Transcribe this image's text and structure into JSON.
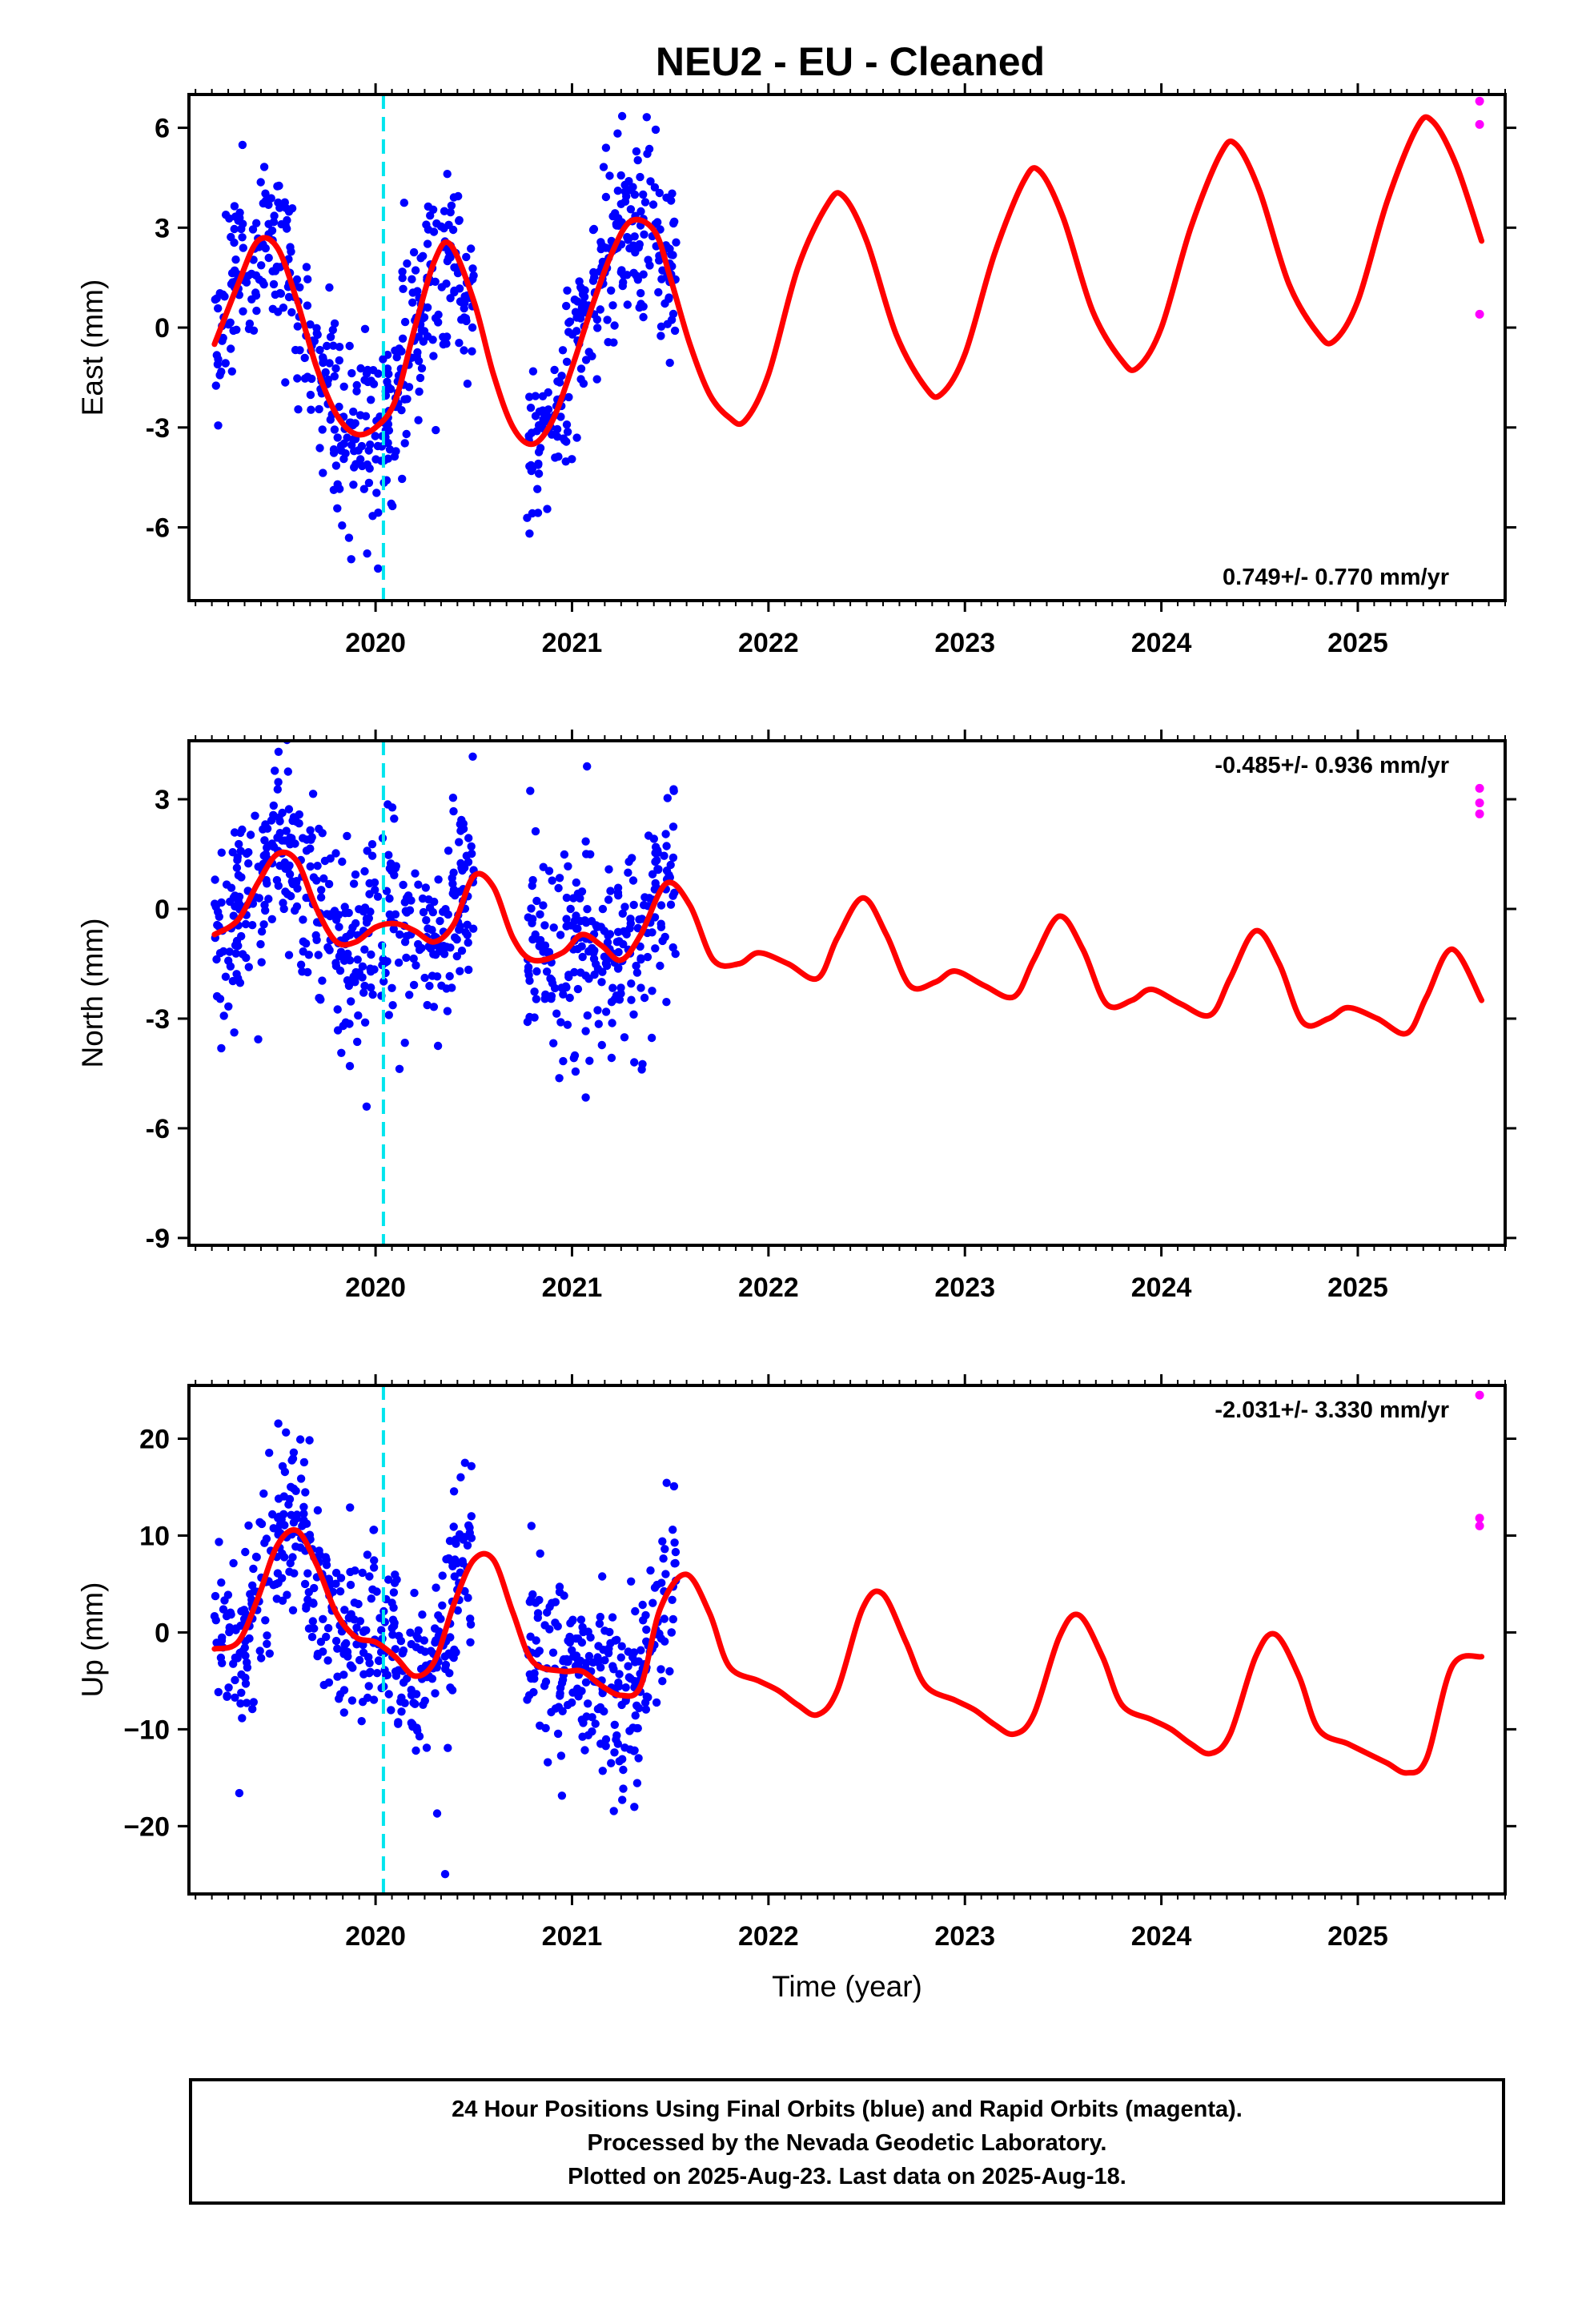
{
  "title": "NEU2  - EU - Cleaned",
  "colors": {
    "final_orbits": "#0000ff",
    "rapid_orbits": "#ff00ff",
    "model": "#ff0000",
    "event_line": "#00e5ee",
    "frame": "#000000"
  },
  "chart_data": [
    {
      "type": "scatter",
      "component": "east",
      "ylabel": "East (mm)",
      "xlabel": "",
      "rate_label": "0.749+/- 0.770 mm/yr",
      "xlim": [
        2019.05,
        2025.75
      ],
      "ylim": [
        -8.2,
        7.0
      ],
      "yticks": [
        6,
        3,
        0,
        -3,
        -6
      ],
      "ytick_labels": [
        "6",
        "3",
        "0",
        "-3",
        "-6"
      ],
      "xticks": [
        2020,
        2021,
        2022,
        2023,
        2024,
        2025
      ],
      "xtick_labels": [
        "2020",
        "2021",
        "2022",
        "2023",
        "2024",
        "2025"
      ],
      "event_lines": [
        2020.04
      ],
      "final_orbit_segments": [
        [
          2019.18,
          2020.35
        ],
        [
          2020.35,
          2020.5
        ],
        [
          2020.75,
          2021.55
        ]
      ],
      "model_curve": {
        "x": [
          2019.18,
          2019.3,
          2019.4,
          2019.5,
          2019.6,
          2019.7,
          2019.8,
          2019.9,
          2020.0,
          2020.1,
          2020.2,
          2020.3,
          2020.38,
          2020.5,
          2020.6,
          2020.7,
          2020.8,
          2020.9,
          2021.0,
          2021.1,
          2021.2,
          2021.3,
          2021.42,
          2021.5,
          2021.6,
          2021.7,
          2021.8,
          2021.88,
          2022.0,
          2022.15,
          2022.3,
          2022.38,
          2022.5,
          2022.65,
          2022.8,
          2022.88,
          2023.0,
          2023.15,
          2023.3,
          2023.38,
          2023.5,
          2023.65,
          2023.8,
          2023.88,
          2024.0,
          2024.15,
          2024.3,
          2024.38,
          2024.5,
          2024.65,
          2024.8,
          2024.88,
          2025.0,
          2025.15,
          2025.3,
          2025.38,
          2025.5,
          2025.63
        ],
        "y": [
          -0.5,
          1.3,
          2.6,
          2.4,
          0.8,
          -1.2,
          -2.6,
          -3.2,
          -3.0,
          -2.2,
          0.0,
          2.0,
          2.5,
          0.8,
          -1.4,
          -3.0,
          -3.5,
          -2.8,
          -1.2,
          0.6,
          2.2,
          3.2,
          2.9,
          1.5,
          -0.5,
          -2.0,
          -2.7,
          -2.8,
          -1.4,
          1.8,
          3.7,
          3.95,
          2.6,
          -0.2,
          -1.8,
          -2.0,
          -0.8,
          2.2,
          4.4,
          4.7,
          3.3,
          0.5,
          -1.0,
          -1.2,
          0.0,
          3.0,
          5.2,
          5.5,
          4.1,
          1.3,
          -0.2,
          -0.4,
          0.8,
          3.8,
          6.0,
          6.2,
          4.9,
          2.6
        ]
      },
      "rapid_orbit_points": {
        "x": [
          2025.62,
          2025.62,
          2025.62
        ],
        "y": [
          6.8,
          6.1,
          0.4
        ]
      }
    },
    {
      "type": "scatter",
      "component": "north",
      "ylabel": "North (mm)",
      "xlabel": "",
      "rate_label": "-0.485+/- 0.936 mm/yr",
      "xlim": [
        2019.05,
        2025.75
      ],
      "ylim": [
        -9.2,
        4.6
      ],
      "yticks": [
        3,
        0,
        -3,
        -6,
        -9
      ],
      "ytick_labels": [
        "3",
        "0",
        "-3",
        "-6",
        "-9"
      ],
      "xticks": [
        2020,
        2021,
        2022,
        2023,
        2024,
        2025
      ],
      "xtick_labels": [
        "2020",
        "2021",
        "2022",
        "2023",
        "2024",
        "2025"
      ],
      "event_lines": [
        2020.04
      ],
      "model_curve": {
        "x": [
          2019.18,
          2019.3,
          2019.4,
          2019.5,
          2019.6,
          2019.7,
          2019.8,
          2019.9,
          2020.0,
          2020.1,
          2020.2,
          2020.3,
          2020.4,
          2020.5,
          2020.6,
          2020.7,
          2020.8,
          2020.95,
          2021.05,
          2021.15,
          2021.25,
          2021.35,
          2021.48,
          2021.6,
          2021.72,
          2021.85,
          2021.95,
          2022.1,
          2022.25,
          2022.35,
          2022.48,
          2022.6,
          2022.72,
          2022.85,
          2022.95,
          2023.1,
          2023.25,
          2023.35,
          2023.48,
          2023.6,
          2023.72,
          2023.85,
          2023.95,
          2024.1,
          2024.25,
          2024.35,
          2024.48,
          2024.6,
          2024.72,
          2024.85,
          2024.95,
          2025.1,
          2025.25,
          2025.35,
          2025.48,
          2025.63
        ],
        "y": [
          -0.7,
          -0.3,
          0.7,
          1.5,
          1.3,
          0.0,
          -0.9,
          -0.9,
          -0.5,
          -0.4,
          -0.6,
          -0.9,
          -0.4,
          0.9,
          0.6,
          -0.8,
          -1.4,
          -1.2,
          -0.7,
          -1.0,
          -1.4,
          -0.7,
          0.7,
          0.1,
          -1.4,
          -1.5,
          -1.2,
          -1.5,
          -1.9,
          -0.8,
          0.3,
          -0.7,
          -2.1,
          -2.0,
          -1.7,
          -2.1,
          -2.4,
          -1.4,
          -0.2,
          -1.1,
          -2.6,
          -2.5,
          -2.2,
          -2.6,
          -2.9,
          -1.9,
          -0.6,
          -1.5,
          -3.1,
          -3.0,
          -2.7,
          -3.0,
          -3.4,
          -2.4,
          -1.1,
          -2.5
        ]
      },
      "rapid_orbit_points": {
        "x": [
          2025.62,
          2025.62,
          2025.62
        ],
        "y": [
          3.3,
          2.9,
          2.6
        ]
      }
    },
    {
      "type": "scatter",
      "component": "up",
      "ylabel": "Up (mm)",
      "xlabel": "Time (year)",
      "rate_label": "-2.031+/- 3.330 mm/yr",
      "xlim": [
        2019.05,
        2025.75
      ],
      "ylim": [
        -27,
        25.5
      ],
      "yticks": [
        20,
        10,
        0,
        -10,
        -20
      ],
      "ytick_labels": [
        "20",
        "10",
        "0",
        "−10",
        "−20"
      ],
      "xticks": [
        2020,
        2021,
        2022,
        2023,
        2024,
        2025
      ],
      "xtick_labels": [
        "2020",
        "2021",
        "2022",
        "2023",
        "2024",
        "2025"
      ],
      "event_lines": [
        2020.04
      ],
      "model_curve": {
        "x": [
          2019.18,
          2019.3,
          2019.4,
          2019.5,
          2019.6,
          2019.7,
          2019.8,
          2019.9,
          2020.0,
          2020.1,
          2020.2,
          2020.3,
          2020.4,
          2020.5,
          2020.6,
          2020.7,
          2020.8,
          2020.95,
          2021.05,
          2021.15,
          2021.25,
          2021.35,
          2021.45,
          2021.58,
          2021.7,
          2021.8,
          2021.95,
          2022.05,
          2022.15,
          2022.25,
          2022.35,
          2022.48,
          2022.58,
          2022.7,
          2022.8,
          2022.95,
          2023.05,
          2023.15,
          2023.25,
          2023.35,
          2023.48,
          2023.58,
          2023.7,
          2023.8,
          2023.95,
          2024.05,
          2024.15,
          2024.25,
          2024.35,
          2024.48,
          2024.58,
          2024.7,
          2024.8,
          2024.95,
          2025.05,
          2025.15,
          2025.25,
          2025.35,
          2025.48,
          2025.63
        ],
        "y": [
          -1.7,
          -1.0,
          3.5,
          9.0,
          10.5,
          7.0,
          2.0,
          -0.5,
          -1.0,
          -2.5,
          -4.5,
          -3.0,
          3.0,
          7.5,
          7.5,
          2.0,
          -3.0,
          -4.0,
          -4.0,
          -5.5,
          -6.5,
          -5.5,
          2.5,
          6.0,
          2.0,
          -3.5,
          -5.0,
          -6.0,
          -7.5,
          -8.5,
          -6.0,
          2.5,
          4.0,
          -1.0,
          -5.5,
          -7.0,
          -8.0,
          -9.5,
          -10.5,
          -8.5,
          -0.5,
          1.8,
          -2.5,
          -7.5,
          -9.0,
          -10.0,
          -11.5,
          -12.5,
          -10.5,
          -2.5,
          -0.2,
          -4.5,
          -10.0,
          -11.5,
          -12.5,
          -13.5,
          -14.5,
          -13.0,
          -3.5,
          -2.5
        ]
      },
      "rapid_orbit_points": {
        "x": [
          2025.62,
          2025.62,
          2025.62
        ],
        "y": [
          24.5,
          11.8,
          11.0
        ]
      }
    }
  ],
  "footer": {
    "line1": "24 Hour Positions Using Final Orbits (blue) and Rapid Orbits (magenta).",
    "line2": "Processed by the Nevada Geodetic Laboratory.",
    "line3": "Plotted on 2025-Aug-23. Last data on 2025-Aug-18."
  }
}
